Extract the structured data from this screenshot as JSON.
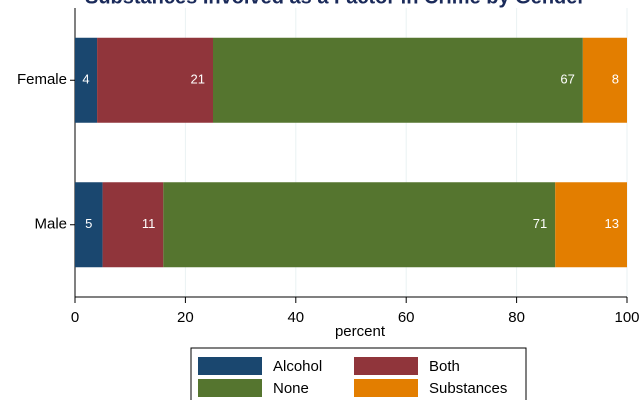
{
  "chart_data": {
    "type": "stacked-barh",
    "title": "Substances Involved as a Factor in Crime by Gender",
    "x_label": "percent",
    "categories": [
      "Female",
      "Male"
    ],
    "series": [
      {
        "name": "Alcohol",
        "color": "#1a476f",
        "values": [
          4,
          5
        ]
      },
      {
        "name": "Both",
        "color": "#90353b",
        "values": [
          21,
          11
        ]
      },
      {
        "name": "None",
        "color": "#55752f",
        "values": [
          67,
          71
        ]
      },
      {
        "name": "Substances",
        "color": "#e37e00",
        "values": [
          8,
          13
        ]
      }
    ],
    "xlim": [
      0,
      100
    ],
    "xticks": [
      0,
      20,
      40,
      60,
      80,
      100
    ],
    "grid": true,
    "legend": "bottom"
  }
}
